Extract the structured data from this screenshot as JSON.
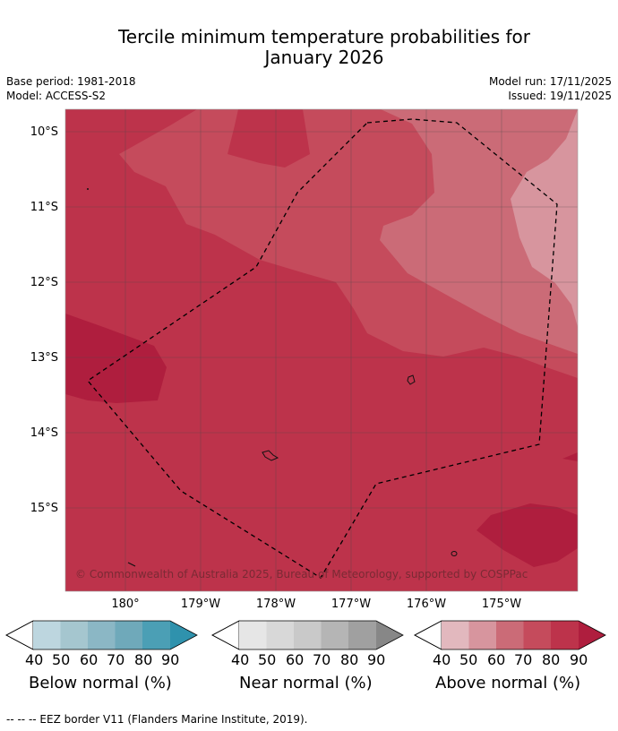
{
  "title": {
    "line1": "Tercile minimum temperature probabilities for",
    "line2": "January 2026"
  },
  "meta": {
    "base_period": "Base period: 1981-2018",
    "model": "Model: ACCESS-S2",
    "model_run": "Model run: 17/11/2025",
    "issued": "Issued: 19/11/2025"
  },
  "map": {
    "lat_labels": [
      "10°S",
      "11°S",
      "12°S",
      "13°S",
      "14°S",
      "15°S"
    ],
    "lon_labels": [
      "180°",
      "179°W",
      "178°W",
      "177°W",
      "176°W",
      "175°W"
    ],
    "copyright": "© Commonwealth of Australia 2025, Bureau of Meteorology, supported by COSPPac",
    "colors": {
      "above_80_90": "#bd334b",
      "above_90": "#af1e3e",
      "above_70_80": "#c54b5c",
      "above_60_70": "#cb6b77",
      "above_50_60": "#d7959e"
    }
  },
  "colorbars": {
    "ticks": [
      "40",
      "50",
      "60",
      "70",
      "80",
      "90"
    ],
    "below": {
      "label": "Below normal (%)",
      "colors": [
        "#bdd6df",
        "#a5c6cf",
        "#8bb7c5",
        "#6fa9ba",
        "#4b9fb5",
        "#2f92ad"
      ]
    },
    "near": {
      "label": "Near normal (%)",
      "colors": [
        "#e6e6e6",
        "#d8d8d8",
        "#c9c9c9",
        "#b5b5b5",
        "#a0a0a0",
        "#878787"
      ]
    },
    "above": {
      "label": "Above normal (%)",
      "colors": [
        "#e2b8be",
        "#d7959e",
        "#cb6b77",
        "#c54b5c",
        "#bd334b",
        "#af1e3e"
      ]
    }
  },
  "footer": "--  --  -- EEZ border V11 (Flanders Marine Institute, 2019)."
}
